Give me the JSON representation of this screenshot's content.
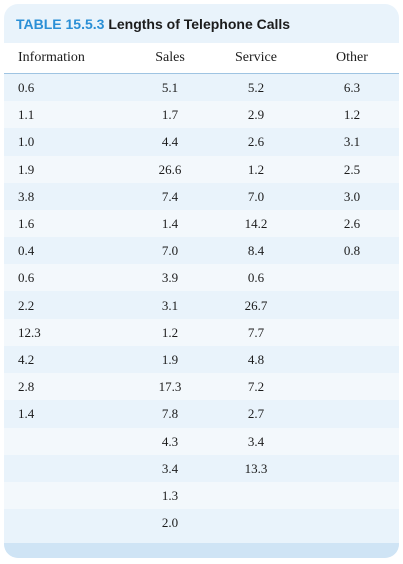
{
  "table": {
    "number": "TABLE 15.5.3",
    "title": "Lengths of Telephone Calls",
    "columns": [
      "Information",
      "Sales",
      "Service",
      "Other"
    ],
    "rows": [
      [
        "0.6",
        "5.1",
        "5.2",
        "6.3"
      ],
      [
        "1.1",
        "1.7",
        "2.9",
        "1.2"
      ],
      [
        "1.0",
        "4.4",
        "2.6",
        "3.1"
      ],
      [
        "1.9",
        "26.6",
        "1.2",
        "2.5"
      ],
      [
        "3.8",
        "7.4",
        "7.0",
        "3.0"
      ],
      [
        "1.6",
        "1.4",
        "14.2",
        "2.6"
      ],
      [
        "0.4",
        "7.0",
        "8.4",
        "0.8"
      ],
      [
        "0.6",
        "3.9",
        "0.6",
        ""
      ],
      [
        "2.2",
        "3.1",
        "26.7",
        ""
      ],
      [
        "12.3",
        "1.2",
        "7.7",
        ""
      ],
      [
        "4.2",
        "1.9",
        "4.8",
        ""
      ],
      [
        "2.8",
        "17.3",
        "7.2",
        ""
      ],
      [
        "1.4",
        "7.8",
        "2.7",
        ""
      ],
      [
        "",
        "4.3",
        "3.4",
        ""
      ],
      [
        "",
        "3.4",
        "13.3",
        ""
      ],
      [
        "",
        "1.3",
        "",
        ""
      ],
      [
        "",
        "2.0",
        "",
        ""
      ]
    ]
  },
  "colors": {
    "accent": "#2a8fd6",
    "background": "#e9f3fb"
  }
}
